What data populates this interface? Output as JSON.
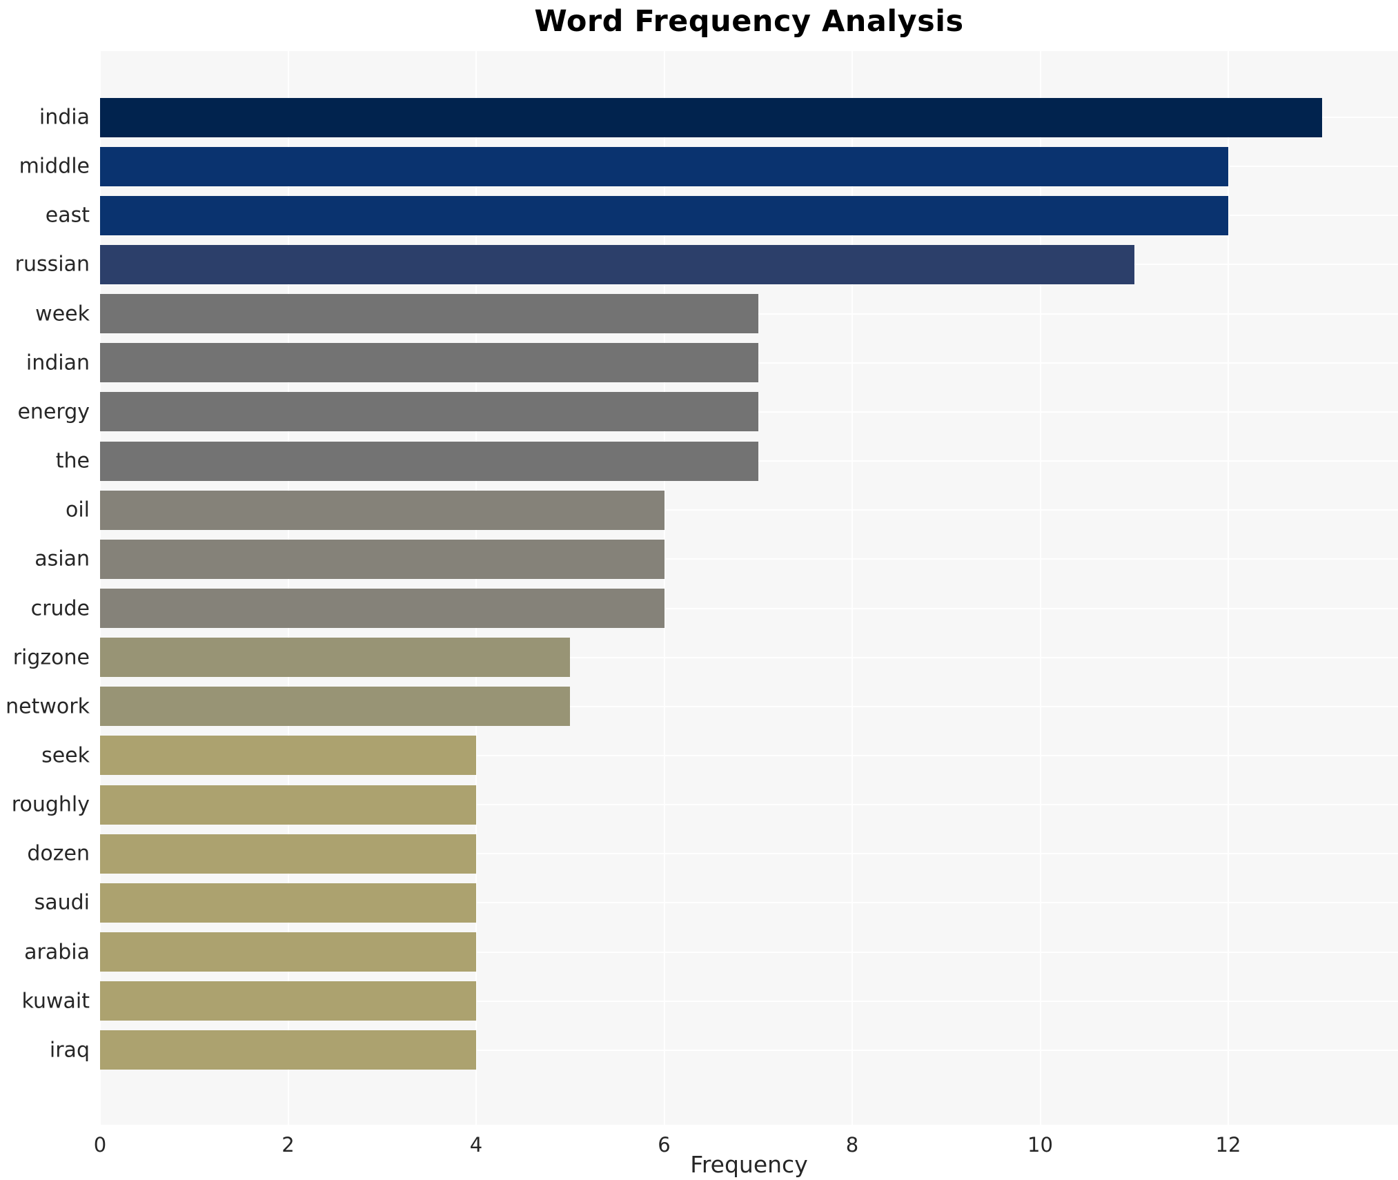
{
  "title": "Word Frequency Analysis",
  "chart_data": {
    "type": "bar",
    "orientation": "horizontal",
    "title": "Word Frequency Analysis",
    "xlabel": "Frequency",
    "ylabel": "",
    "categories": [
      "india",
      "middle",
      "east",
      "russian",
      "week",
      "indian",
      "energy",
      "the",
      "oil",
      "asian",
      "crude",
      "rigzone",
      "network",
      "seek",
      "roughly",
      "dozen",
      "saudi",
      "arabia",
      "kuwait",
      "iraq"
    ],
    "values": [
      13,
      12,
      12,
      11,
      7,
      7,
      7,
      7,
      6,
      6,
      6,
      5,
      5,
      4,
      4,
      4,
      4,
      4,
      4,
      4
    ],
    "bar_colors": [
      "#01234e",
      "#0a336f",
      "#0a336f",
      "#2c3f6a",
      "#737373",
      "#737373",
      "#737373",
      "#737373",
      "#858279",
      "#858279",
      "#858279",
      "#989475",
      "#989475",
      "#aca26f",
      "#aca26f",
      "#aca26f",
      "#aca26f",
      "#aca26f",
      "#aca26f",
      "#aca26f"
    ],
    "xticks": [
      0,
      2,
      4,
      6,
      8,
      10,
      12
    ],
    "xlim": [
      0,
      13.8
    ],
    "grid": true,
    "legend": "none",
    "plot_background": "#f7f7f7",
    "gridline_color": "#ffffff",
    "tick_text_color": "#262626",
    "title_color": "#000000"
  }
}
